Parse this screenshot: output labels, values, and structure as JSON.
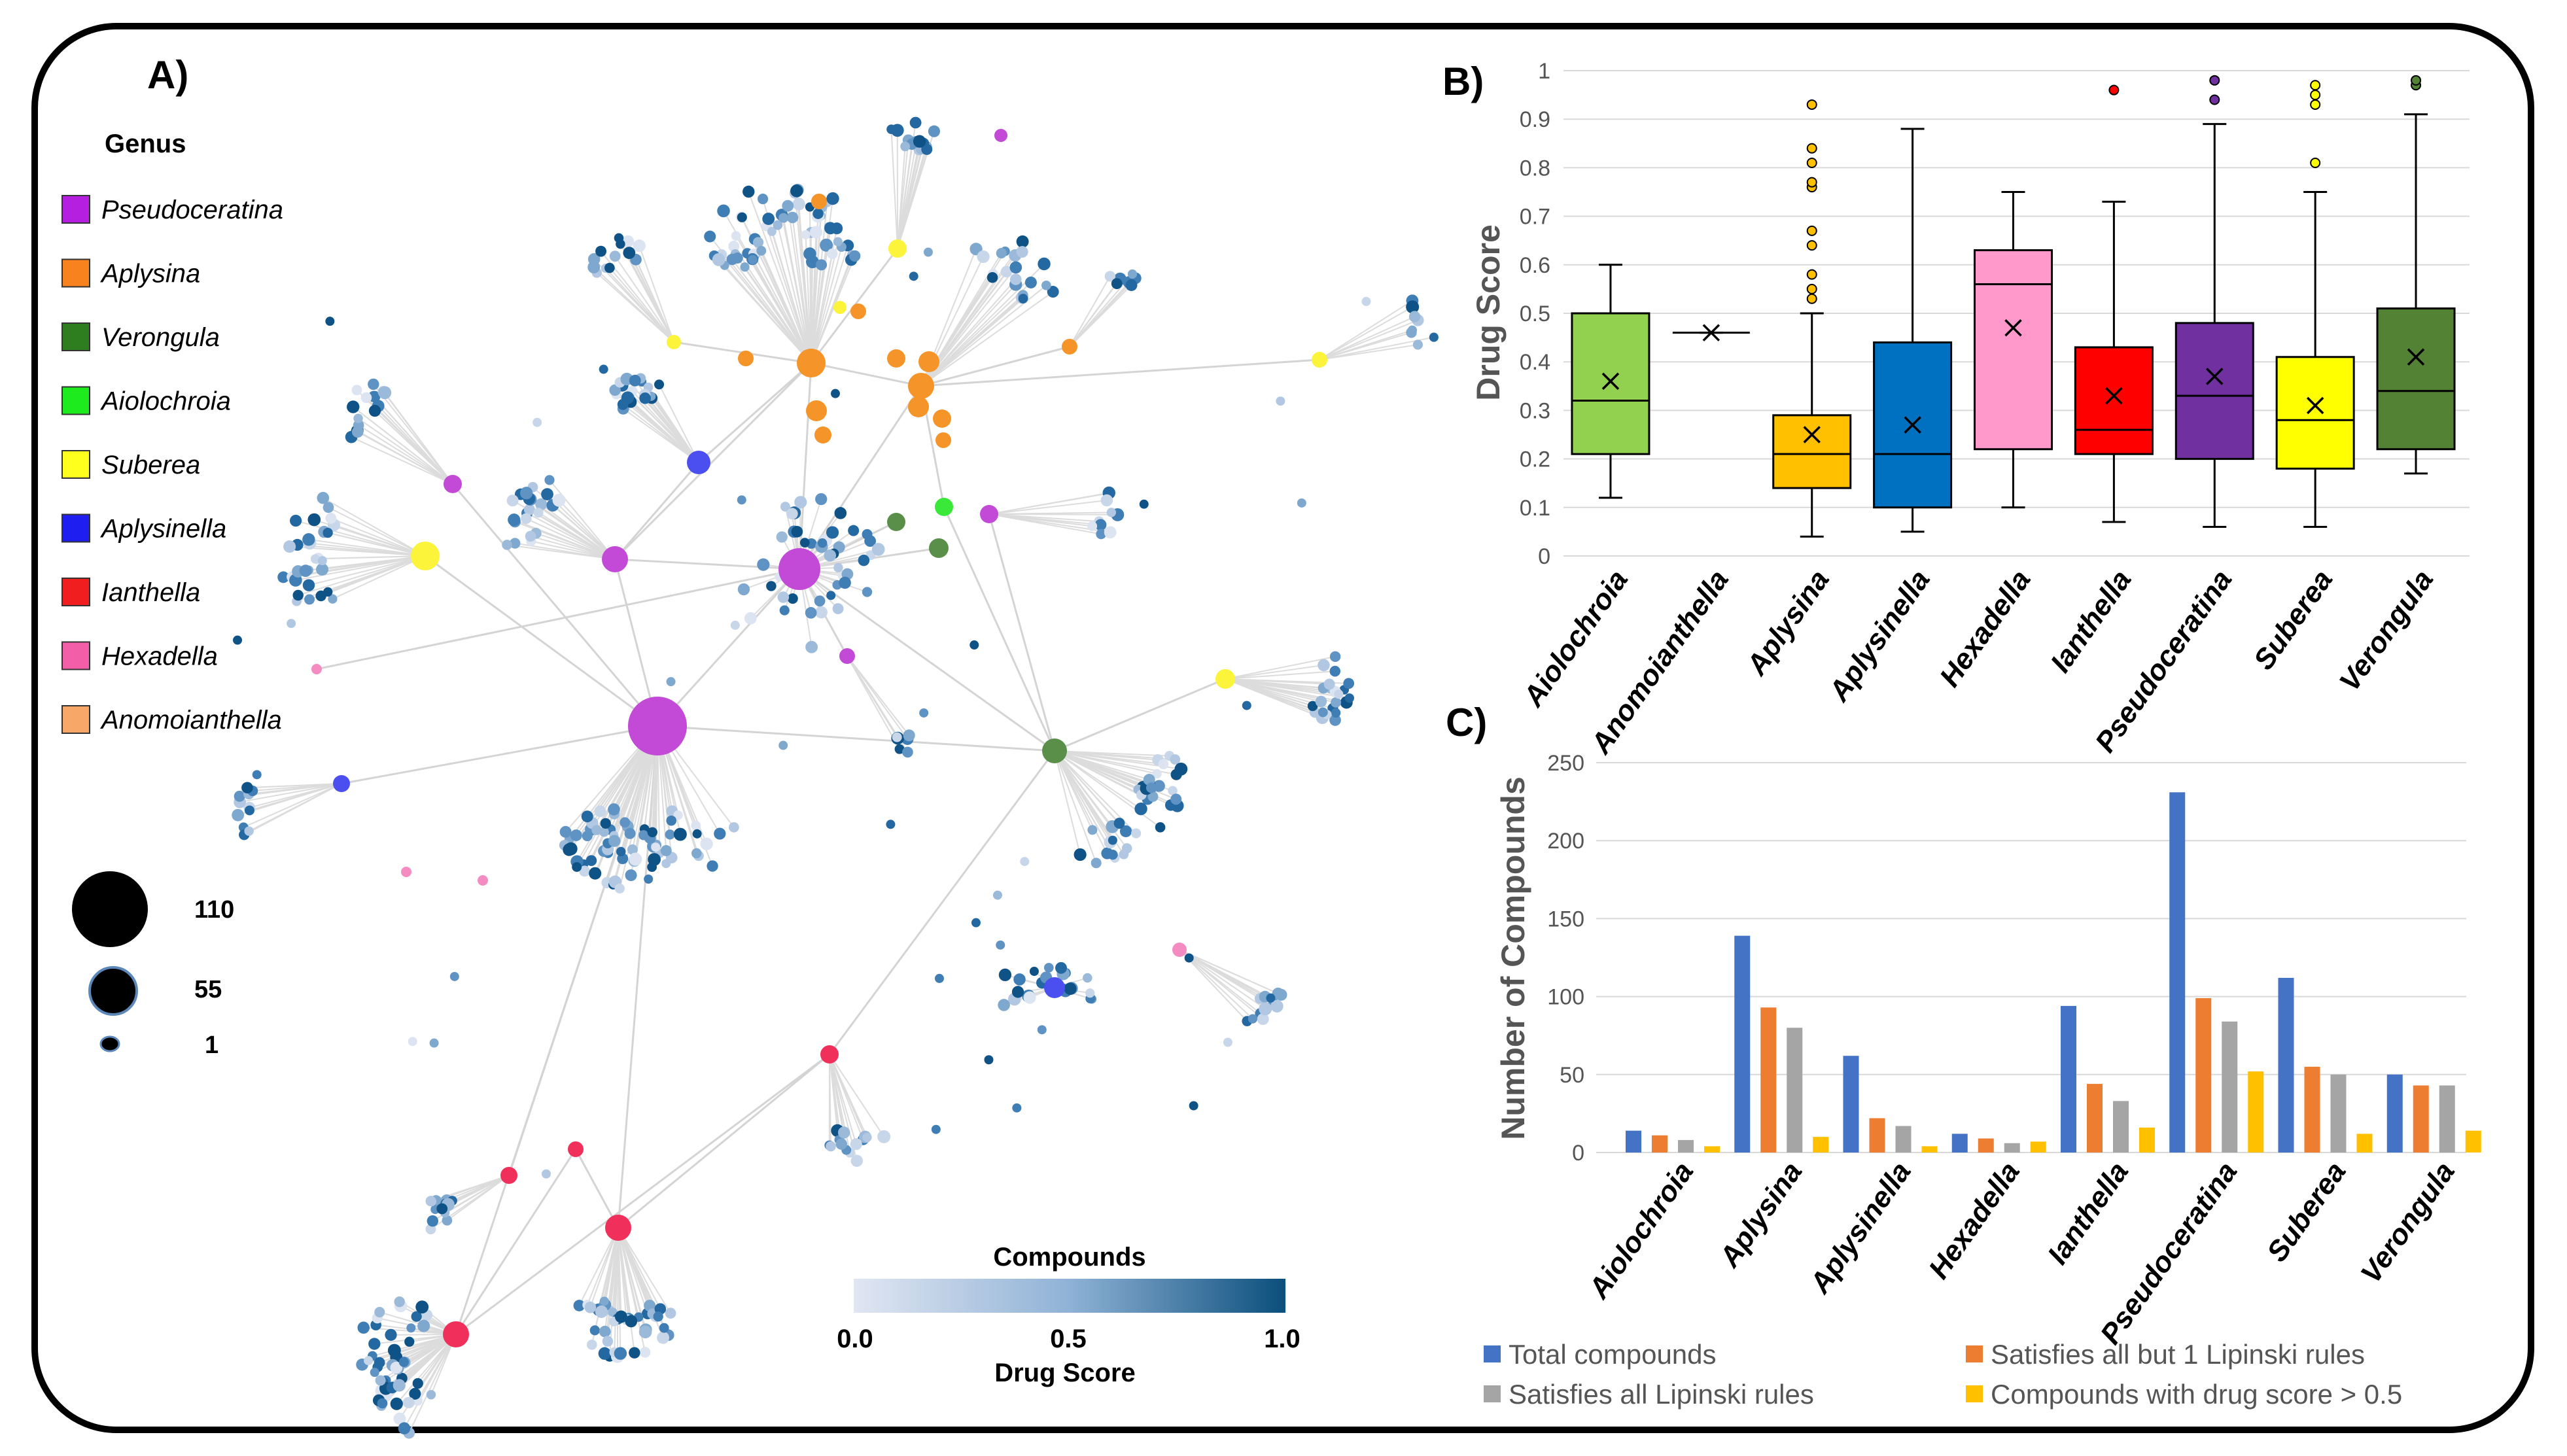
{
  "panels": {
    "a": "A)",
    "b": "B)",
    "c": "C)"
  },
  "network_legend": {
    "title": "Genus",
    "genera": [
      {
        "name": "Pseudoceratina",
        "color": "#b41fe0"
      },
      {
        "name": "Aplysina",
        "color": "#f7821e"
      },
      {
        "name": "Verongula",
        "color": "#2e7d1f"
      },
      {
        "name": "Aiolochroia",
        "color": "#1eeb1e"
      },
      {
        "name": "Suberea",
        "color": "#ffff1e"
      },
      {
        "name": "Aplysinella",
        "color": "#1e1ef0"
      },
      {
        "name": "Ianthella",
        "color": "#f01e1e"
      },
      {
        "name": "Hexadella",
        "color": "#f25ea7"
      },
      {
        "name": "Anomoianthella",
        "color": "#f7a868"
      }
    ],
    "sizes": [
      "110",
      "55",
      "1"
    ],
    "colorbar": {
      "title": "Compounds",
      "ticks": [
        "0.0",
        "0.5",
        "1.0"
      ],
      "label": "Drug Score",
      "low_color": "#e1e6f2",
      "high_color": "#0b4f7c"
    }
  },
  "node_colors": {
    "Pseudoceratina": "#c24ad6",
    "Aplysina": "#f59428",
    "Verongula": "#5a8f4a",
    "Aiolochroia": "#3ae83a",
    "Suberea": "#fbf43a",
    "Aplysinella": "#4b4ff0",
    "Ianthella": "#f0305a",
    "Hexadella": "#f48cc2"
  },
  "chart_data": [
    {
      "type": "box",
      "title": "",
      "ylabel": "Drug Score",
      "ylim": [
        0,
        1
      ],
      "yticks": [
        "0",
        "0.1",
        "0.2",
        "0.3",
        "0.4",
        "0.5",
        "0.6",
        "0.7",
        "0.8",
        "0.9",
        "1"
      ],
      "boxes": [
        {
          "name": "Aiolochroia",
          "color": "#92d050",
          "min": 0.12,
          "q1": 0.21,
          "median": 0.32,
          "q3": 0.5,
          "max": 0.6,
          "mean": 0.36,
          "outliers": []
        },
        {
          "name": "Anomoianthella",
          "color": "#f4a460",
          "min": 0.46,
          "q1": 0.46,
          "median": 0.46,
          "q3": 0.46,
          "max": 0.46,
          "mean": 0.46,
          "outliers": []
        },
        {
          "name": "Aplysina",
          "color": "#ffc000",
          "min": 0.04,
          "q1": 0.14,
          "median": 0.21,
          "q3": 0.29,
          "max": 0.5,
          "mean": 0.25,
          "outliers": [
            0.53,
            0.55,
            0.58,
            0.64,
            0.67,
            0.76,
            0.77,
            0.81,
            0.84,
            0.93
          ]
        },
        {
          "name": "Aplysinella",
          "color": "#0070c0",
          "min": 0.05,
          "q1": 0.1,
          "median": 0.21,
          "q3": 0.44,
          "max": 0.88,
          "mean": 0.27,
          "outliers": []
        },
        {
          "name": "Hexadella",
          "color": "#ff99cc",
          "min": 0.1,
          "q1": 0.22,
          "median": 0.56,
          "q3": 0.63,
          "max": 0.75,
          "mean": 0.47,
          "outliers": []
        },
        {
          "name": "Ianthella",
          "color": "#ff0000",
          "min": 0.07,
          "q1": 0.21,
          "median": 0.26,
          "q3": 0.43,
          "max": 0.73,
          "mean": 0.33,
          "outliers": [
            0.96
          ]
        },
        {
          "name": "Pseudoceratina",
          "color": "#7030a0",
          "min": 0.06,
          "q1": 0.2,
          "median": 0.33,
          "q3": 0.48,
          "max": 0.89,
          "mean": 0.37,
          "outliers": [
            0.94,
            0.98
          ]
        },
        {
          "name": "Suberea",
          "color": "#ffff00",
          "min": 0.06,
          "q1": 0.18,
          "median": 0.28,
          "q3": 0.41,
          "max": 0.75,
          "mean": 0.31,
          "outliers": [
            0.81,
            0.93,
            0.95,
            0.97
          ]
        },
        {
          "name": "Verongula",
          "color": "#548235",
          "min": 0.17,
          "q1": 0.22,
          "median": 0.34,
          "q3": 0.51,
          "max": 0.91,
          "mean": 0.41,
          "outliers": [
            0.97,
            0.98
          ]
        }
      ]
    },
    {
      "type": "bar",
      "ylabel": "Number of Compounds",
      "ylim": [
        0,
        250
      ],
      "yticks": [
        "0",
        "50",
        "100",
        "150",
        "200",
        "250"
      ],
      "categories": [
        "Aiolochroia",
        "Aplysina",
        "Aplysinella",
        "Hexadella",
        "Ianthella",
        "Pseudoceratina",
        "Suberea",
        "Verongula"
      ],
      "series": [
        {
          "name": "Total compounds",
          "color": "#4472c4",
          "values": [
            14,
            139,
            62,
            12,
            94,
            231,
            112,
            50
          ]
        },
        {
          "name": "Satisfies all but 1 Lipinski rules",
          "color": "#ed7d31",
          "values": [
            11,
            93,
            22,
            9,
            44,
            99,
            55,
            43
          ]
        },
        {
          "name": "Satisfies all Lipinski rules",
          "color": "#a5a5a5",
          "values": [
            8,
            80,
            17,
            6,
            33,
            84,
            50,
            43
          ]
        },
        {
          "name": "Compounds with drug score > 0.5",
          "color": "#ffc000",
          "values": [
            4,
            10,
            4,
            7,
            16,
            52,
            12,
            14
          ]
        }
      ],
      "legend": [
        "Total compounds",
        "Satisfies all but 1 Lipinski rules",
        "Satisfies all Lipinski rules",
        "Compounds with drug score > 0.5"
      ]
    }
  ]
}
